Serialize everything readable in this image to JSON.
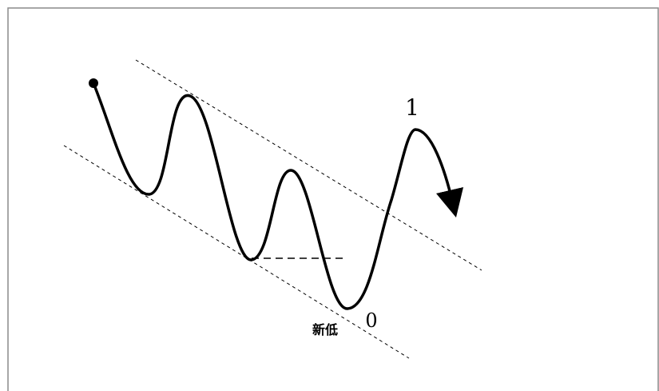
{
  "diagram": {
    "labels": {
      "wave_one": "1",
      "wave_zero": "0",
      "new_low": "新低"
    },
    "colors": {
      "stroke": "#000000",
      "border": "#8a8a8a",
      "background": "#ffffff"
    }
  }
}
